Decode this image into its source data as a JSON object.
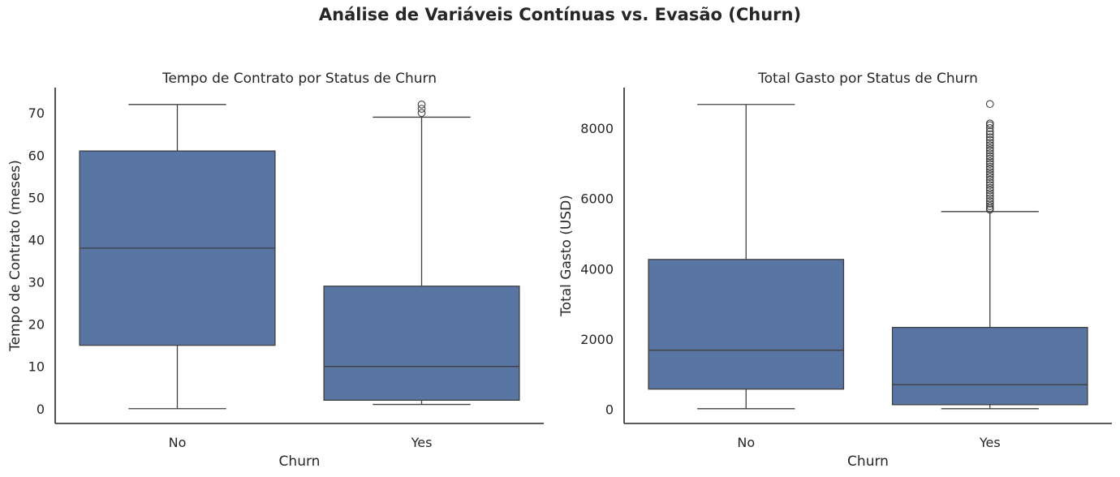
{
  "suptitle": "Análise de Variáveis Contínuas vs. Evasão (Churn)",
  "colors": {
    "box": "#5875a4",
    "line": "#3f3f3f",
    "axis": "#262626"
  },
  "chart_data": [
    {
      "type": "box",
      "title": "Tempo de Contrato por Status de Churn",
      "xlabel": "Churn",
      "ylabel": "Tempo de Contrato (meses)",
      "categories": [
        "No",
        "Yes"
      ],
      "ylim": [
        -3.5,
        76
      ],
      "yticks": [
        0,
        10,
        20,
        30,
        40,
        50,
        60,
        70
      ],
      "grid": false,
      "boxes": [
        {
          "category": "No",
          "whisker_low": 0,
          "q1": 15,
          "median": 38,
          "q3": 61,
          "whisker_high": 72,
          "outliers": []
        },
        {
          "category": "Yes",
          "whisker_low": 1,
          "q1": 2,
          "median": 10,
          "q3": 29,
          "whisker_high": 69,
          "outliers": [
            70,
            71,
            72
          ]
        }
      ]
    },
    {
      "type": "box",
      "title": "Total Gasto por Status de Churn",
      "xlabel": "Churn",
      "ylabel": "Total Gasto (USD)",
      "categories": [
        "No",
        "Yes"
      ],
      "ylim": [
        -400,
        9150
      ],
      "yticks": [
        0,
        2000,
        4000,
        6000,
        8000
      ],
      "grid": false,
      "boxes": [
        {
          "category": "No",
          "whisker_low": 19,
          "q1": 577,
          "median": 1683,
          "q3": 4264,
          "whisker_high": 8672,
          "outliers": []
        },
        {
          "category": "Yes",
          "whisker_low": 19,
          "q1": 134,
          "median": 703,
          "q3": 2331,
          "whisker_high": 5625,
          "outliers": [
            5680,
            5720,
            5780,
            5850,
            5920,
            6000,
            6080,
            6150,
            6230,
            6300,
            6380,
            6450,
            6530,
            6610,
            6680,
            6750,
            6830,
            6900,
            6980,
            7050,
            7130,
            7200,
            7280,
            7360,
            7430,
            7510,
            7580,
            7660,
            7740,
            7820,
            7900,
            8000,
            8080,
            8130,
            8684
          ]
        }
      ]
    }
  ]
}
